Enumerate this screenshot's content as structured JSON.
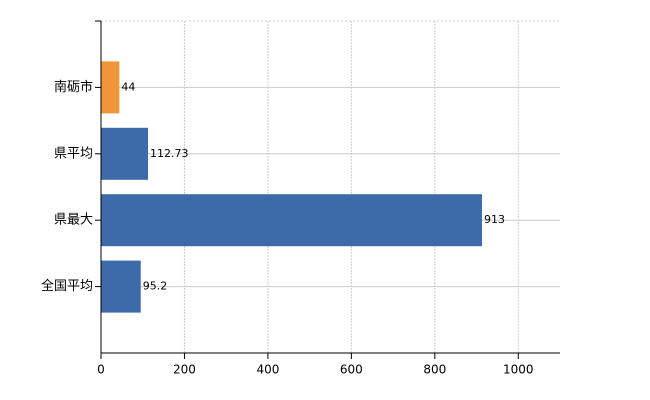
{
  "chart_data": {
    "type": "bar",
    "orientation": "horizontal",
    "categories": [
      "南砺市",
      "県平均",
      "県最大",
      "全国平均"
    ],
    "values": [
      44,
      112.73,
      913,
      95.2
    ],
    "colors": [
      "#f0953a",
      "#3d6aa8",
      "#3d6aa8",
      "#3d6aa8"
    ],
    "xlim": [
      0,
      1100
    ],
    "xticks": [
      0,
      200,
      400,
      600,
      800,
      1000
    ],
    "grid": true
  }
}
